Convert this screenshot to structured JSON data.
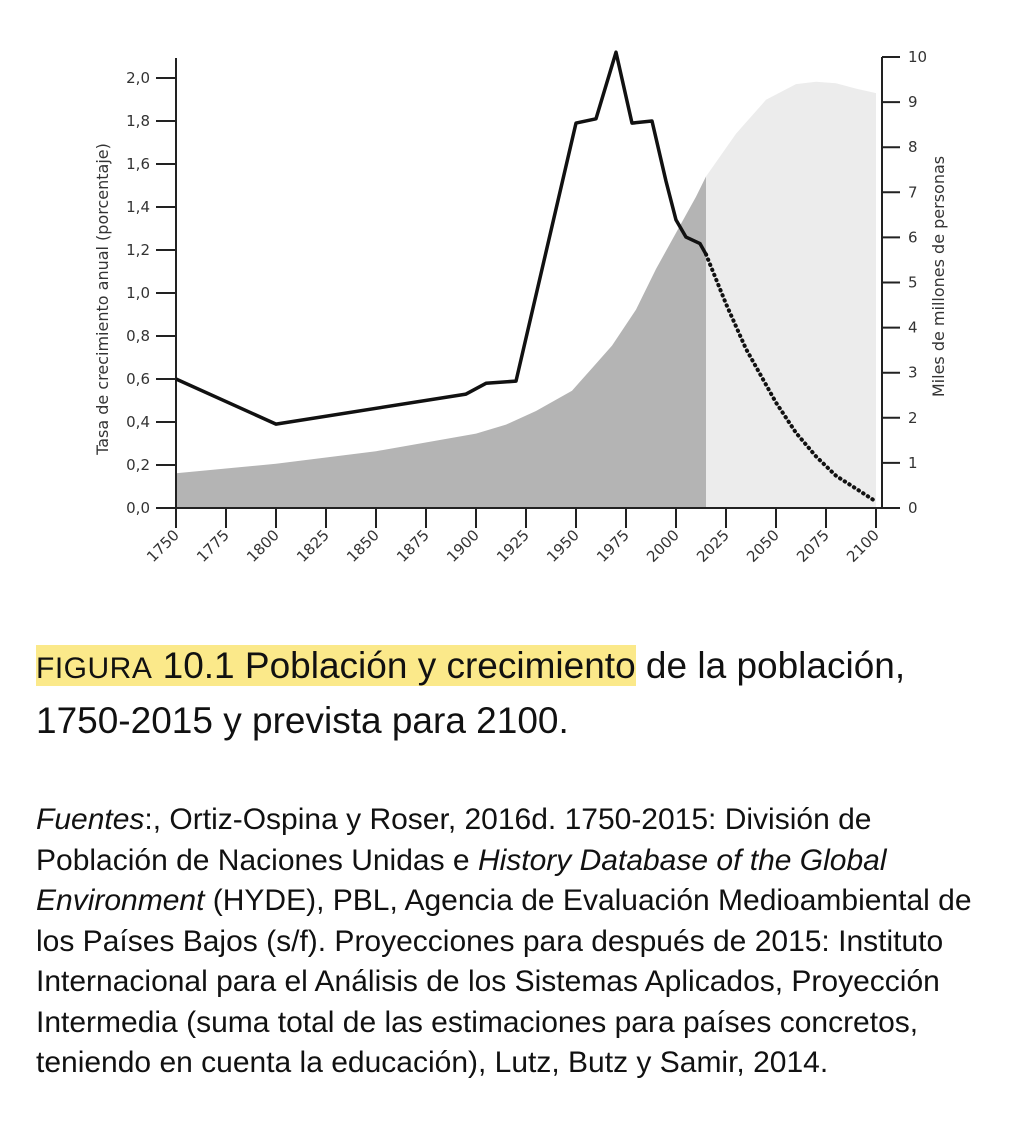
{
  "chart_data": {
    "type": "line",
    "x_ticks": [
      1750,
      1775,
      1800,
      1825,
      1850,
      1875,
      1900,
      1925,
      1950,
      1975,
      2000,
      2025,
      2050,
      2075,
      2100
    ],
    "xlim": [
      1750,
      2100
    ],
    "y_left": {
      "label": "Tasa de crecimiento anual (porcentaje)",
      "ticks": [
        "0,0",
        "0,2",
        "0,4",
        "0,6",
        "0,8",
        "1,0",
        "1,2",
        "1,4",
        "1,6",
        "1,8",
        "2,0"
      ],
      "range": [
        0,
        2.0
      ]
    },
    "y_right": {
      "label": "Miles de millones de personas",
      "ticks": [
        "0",
        "1",
        "2",
        "3",
        "4",
        "5",
        "6",
        "7",
        "8",
        "9",
        "10"
      ],
      "range": [
        0,
        10
      ]
    },
    "series": [
      {
        "style": "solid line",
        "axis": "left",
        "x": [
          1750,
          1800,
          1895,
          1905,
          1920,
          1950,
          1960,
          1970,
          1978,
          1988,
          1995,
          2000,
          2005,
          2012,
          2015
        ],
        "y": [
          0.6,
          0.39,
          0.53,
          0.58,
          0.59,
          1.79,
          1.81,
          2.12,
          1.79,
          1.8,
          1.52,
          1.34,
          1.26,
          1.23,
          1.18
        ]
      },
      {
        "style": "dotted line",
        "axis": "left",
        "x": [
          2015,
          2025,
          2035,
          2050,
          2060,
          2070,
          2080,
          2090,
          2100
        ],
        "y": [
          1.18,
          0.95,
          0.74,
          0.49,
          0.35,
          0.24,
          0.15,
          0.09,
          0.03
        ]
      },
      {
        "style": "dark area",
        "axis": "right",
        "x": [
          1750,
          1800,
          1850,
          1900,
          1915,
          1930,
          1948,
          1958,
          1968,
          1980,
          1990,
          2000,
          2010,
          2015
        ],
        "y": [
          0.77,
          0.98,
          1.26,
          1.65,
          1.85,
          2.15,
          2.6,
          3.1,
          3.6,
          4.4,
          5.3,
          6.1,
          6.9,
          7.35
        ]
      },
      {
        "style": "light area",
        "axis": "right",
        "x": [
          2015,
          2030,
          2045,
          2060,
          2070,
          2080,
          2090,
          2100
        ],
        "y": [
          7.35,
          8.3,
          9.05,
          9.4,
          9.45,
          9.42,
          9.3,
          9.2
        ]
      }
    ]
  },
  "caption": {
    "figure_label": "Figura",
    "highlighted": " 10.1 Población y crecimiento",
    "rest": " de la población, 1750-2015 y prevista para 2100."
  },
  "sources": {
    "label": "Fuentes",
    "part1": ":, Ortiz-Ospina y Roser, 2016d. 1750-2015: División de Población de Naciones Unidas e ",
    "italic1": "History Database of the Global Environment",
    "part2": " (HYDE), PBL, Agencia de Evaluación Medioambiental de los Países Bajos (s/f). Proyecciones para después de 2015: Instituto Internacional para el Análisis de los Sistemas Aplicados, Proyección Intermedia (suma total de las estimaciones para países concretos, teniendo en cuenta la educación), Lutz, Butz y Samir, 2014."
  }
}
